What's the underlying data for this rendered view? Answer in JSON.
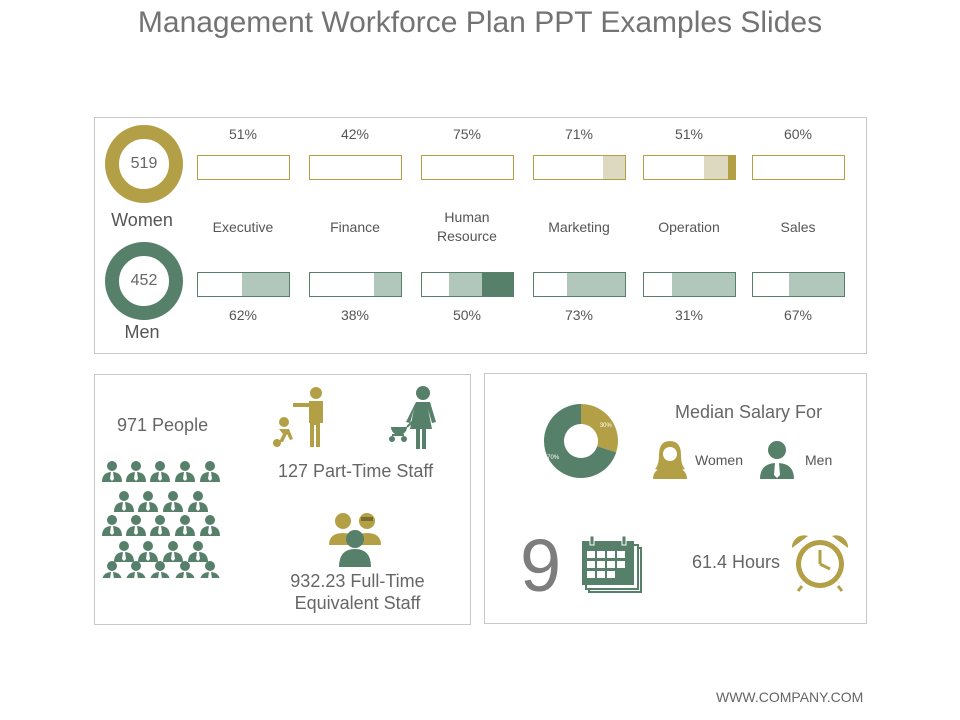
{
  "title": "Management Workforce Plan PPT Examples Slides",
  "colors": {
    "gold": "#b3a046",
    "gold_light": "#ddd9c0",
    "green": "#56806a",
    "green_light": "#b2c7bb",
    "text": "#555555"
  },
  "gender": {
    "women": {
      "count": "519",
      "label": "Women"
    },
    "men": {
      "count": "452",
      "label": "Men"
    }
  },
  "categories": [
    {
      "label": "Executive",
      "women_pct": "51%",
      "men_pct": "62%",
      "women_fill": 0,
      "women_dark": 0,
      "men_fill": 0.52,
      "men_dark": 0
    },
    {
      "label": "Finance",
      "women_pct": "42%",
      "men_pct": "38%",
      "women_fill": 0,
      "women_dark": 0,
      "men_fill": 0.3,
      "men_dark": 0
    },
    {
      "label": "Human\nResource",
      "women_pct": "75%",
      "men_pct": "50%",
      "women_fill": 0,
      "women_dark": 0,
      "men_fill": 0.7,
      "men_dark": 0.34
    },
    {
      "label": "Marketing",
      "women_pct": "71%",
      "men_pct": "73%",
      "women_fill": 0.24,
      "women_dark": 0,
      "men_fill": 0.64,
      "men_dark": 0
    },
    {
      "label": "Operation",
      "women_pct": "51%",
      "men_pct": "31%",
      "women_fill": 0.34,
      "women_dark": 0.08,
      "men_fill": 0.69,
      "men_dark": 0
    },
    {
      "label": "Sales",
      "women_pct": "60%",
      "men_pct": "67%",
      "women_fill": 0,
      "women_dark": 0,
      "men_fill": 0.61,
      "men_dark": 0
    }
  ],
  "staff": {
    "people": "971 People",
    "part_time": "127 Part-Time Staff",
    "full_time": "932.23 Full-Time\nEquivalent Staff"
  },
  "salary": {
    "heading": "Median Salary For",
    "women_label": "Women",
    "men_label": "Men",
    "pie": [
      {
        "label": "70%",
        "value": 70,
        "color": "#56806a"
      },
      {
        "label": "30%",
        "value": 30,
        "color": "#b3a046"
      }
    ],
    "days": "9",
    "hours": "61.4 Hours"
  },
  "footer": "WWW.COMPANY.COM",
  "icons": [
    "parent-child-icon",
    "mother-stroller-icon",
    "crowd-icon",
    "team-icon",
    "woman-avatar-icon",
    "man-avatar-icon",
    "calendar-icon",
    "alarm-clock-icon"
  ]
}
